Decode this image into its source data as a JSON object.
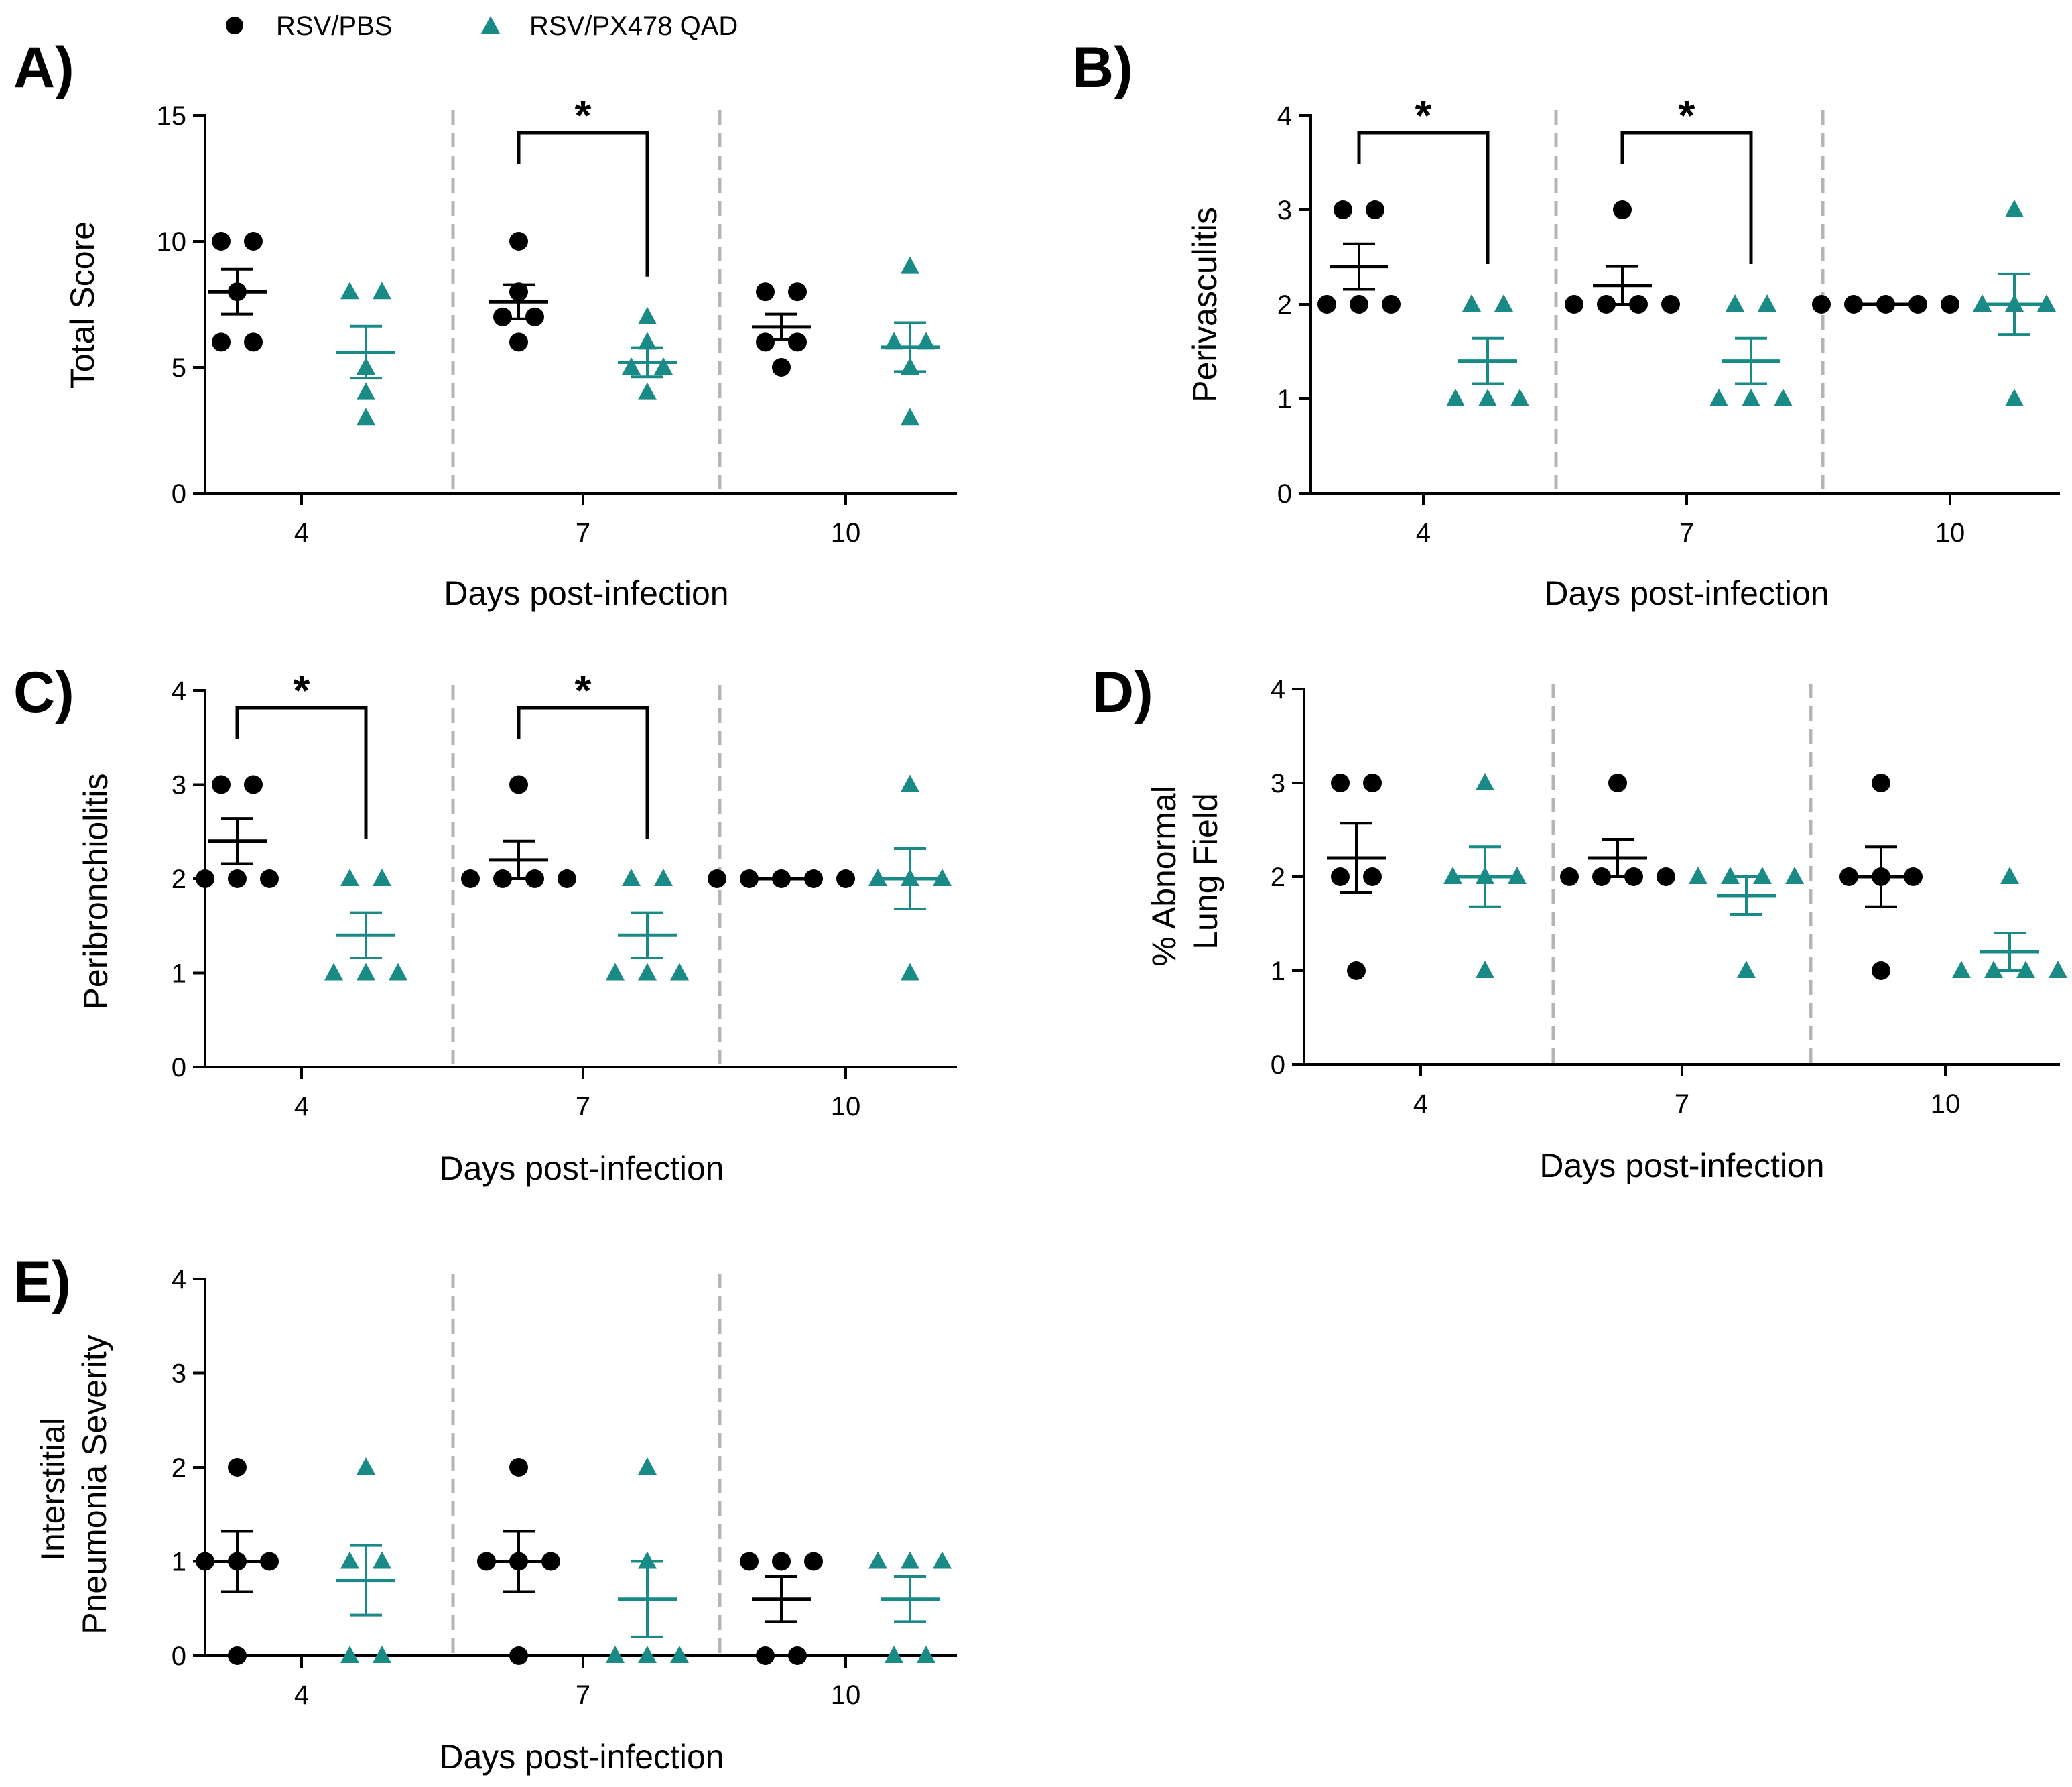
{
  "legend": {
    "items": [
      {
        "label": "RSV/PBS",
        "color": "#000000",
        "marker": "circle"
      },
      {
        "label": "RSV/PX478 QAD",
        "color": "#1a8a86",
        "marker": "triangle"
      }
    ]
  },
  "colors": {
    "pbs": "#000000",
    "px": "#1a8a86",
    "divider": "#b5b5b5"
  },
  "chart_data": [
    {
      "type": "scatter",
      "panel": "A)",
      "ylabel": [
        "Total Score"
      ],
      "xlabel": "Days post-infection",
      "categories": [
        "4",
        "7",
        "10"
      ],
      "ylim": [
        0,
        15
      ],
      "yticks": [
        0,
        5,
        10,
        15
      ],
      "series": [
        {
          "name": "RSV/PBS",
          "points": [
            [
              6,
              6,
              8,
              10,
              10
            ],
            [
              6,
              7,
              7,
              8,
              10
            ],
            [
              5,
              6,
              6,
              8,
              8
            ]
          ],
          "mean": [
            8,
            7.6,
            6.6
          ],
          "sem": [
            0.89,
            0.68,
            0.51
          ]
        },
        {
          "name": "RSV/PX478 QAD",
          "points": [
            [
              3,
              5,
              4,
              8,
              8
            ],
            [
              5,
              5,
              4,
              6,
              7
            ],
            [
              3,
              5,
              6,
              6,
              9
            ]
          ],
          "mean": [
            5.6,
            5.2,
            5.8
          ],
          "sem": [
            1.03,
            0.58,
            0.97
          ]
        }
      ],
      "significance": [
        {
          "category": "7",
          "label": "*"
        }
      ]
    },
    {
      "type": "scatter",
      "panel": "B)",
      "ylabel": [
        "Perivasculitis"
      ],
      "xlabel": "Days post-infection",
      "categories": [
        "4",
        "7",
        "10"
      ],
      "ylim": [
        0,
        4
      ],
      "yticks": [
        0,
        1,
        2,
        3,
        4
      ],
      "series": [
        {
          "name": "RSV/PBS",
          "points": [
            [
              2,
              2,
              2,
              3,
              3
            ],
            [
              2,
              2,
              2,
              2,
              3
            ],
            [
              2,
              2,
              2,
              2,
              2
            ]
          ],
          "mean": [
            2.4,
            2.2,
            2.0
          ],
          "sem": [
            0.24,
            0.2,
            0
          ]
        },
        {
          "name": "RSV/PX478 QAD",
          "points": [
            [
              1,
              1,
              1,
              2,
              2
            ],
            [
              1,
              1,
              1,
              2,
              2
            ],
            [
              1,
              2,
              2,
              2,
              3
            ]
          ],
          "mean": [
            1.4,
            1.4,
            2.0
          ],
          "sem": [
            0.24,
            0.24,
            0.32
          ]
        }
      ],
      "significance": [
        {
          "category": "4",
          "label": "*"
        },
        {
          "category": "7",
          "label": "*"
        }
      ]
    },
    {
      "type": "scatter",
      "panel": "C)",
      "ylabel": [
        "Peribronchiolitis"
      ],
      "xlabel": "Days post-infection",
      "categories": [
        "4",
        "7",
        "10"
      ],
      "ylim": [
        0,
        4
      ],
      "yticks": [
        0,
        1,
        2,
        3,
        4
      ],
      "series": [
        {
          "name": "RSV/PBS",
          "points": [
            [
              2,
              2,
              2,
              3,
              3
            ],
            [
              2,
              2,
              2,
              2,
              3
            ],
            [
              2,
              2,
              2,
              2,
              2
            ]
          ],
          "mean": [
            2.4,
            2.2,
            2.0
          ],
          "sem": [
            0.24,
            0.2,
            0
          ]
        },
        {
          "name": "RSV/PX478 QAD",
          "points": [
            [
              1,
              1,
              1,
              2,
              2
            ],
            [
              1,
              1,
              1,
              2,
              2
            ],
            [
              1,
              2,
              2,
              2,
              3
            ]
          ],
          "mean": [
            1.4,
            1.4,
            2.0
          ],
          "sem": [
            0.24,
            0.24,
            0.32
          ]
        }
      ],
      "significance": [
        {
          "category": "4",
          "label": "*"
        },
        {
          "category": "7",
          "label": "*"
        }
      ]
    },
    {
      "type": "scatter",
      "panel": "D)",
      "ylabel": [
        "% Abnormal",
        "Lung Field"
      ],
      "xlabel": "Days post-infection",
      "categories": [
        "4",
        "7",
        "10"
      ],
      "ylim": [
        0,
        4
      ],
      "yticks": [
        0,
        1,
        2,
        3,
        4
      ],
      "series": [
        {
          "name": "RSV/PBS",
          "points": [
            [
              1,
              2,
              2,
              3,
              3
            ],
            [
              2,
              2,
              2,
              2,
              3
            ],
            [
              1,
              2,
              2,
              2,
              3
            ]
          ],
          "mean": [
            2.2,
            2.2,
            2.0
          ],
          "sem": [
            0.37,
            0.2,
            0.32
          ]
        },
        {
          "name": "RSV/PX478 QAD",
          "points": [
            [
              1,
              2,
              2,
              2,
              3
            ],
            [
              1,
              2,
              2,
              2,
              2
            ],
            [
              1,
              1,
              1,
              1,
              2
            ]
          ],
          "mean": [
            2.0,
            1.8,
            1.2
          ],
          "sem": [
            0.32,
            0.2,
            0.2
          ]
        }
      ],
      "significance": []
    },
    {
      "type": "scatter",
      "panel": "E)",
      "ylabel": [
        "Interstitial",
        "Pneumonia Severity"
      ],
      "xlabel": "Days post-infection",
      "categories": [
        "4",
        "7",
        "10"
      ],
      "ylim": [
        0,
        4
      ],
      "yticks": [
        0,
        1,
        2,
        3,
        4
      ],
      "series": [
        {
          "name": "RSV/PBS",
          "points": [
            [
              0,
              1,
              1,
              1,
              2
            ],
            [
              0,
              1,
              1,
              1,
              2
            ],
            [
              0,
              0,
              1,
              1,
              1
            ]
          ],
          "mean": [
            1.0,
            1.0,
            0.6
          ],
          "sem": [
            0.32,
            0.32,
            0.24
          ]
        },
        {
          "name": "RSV/PX478 QAD",
          "points": [
            [
              0,
              0,
              1,
              1,
              2
            ],
            [
              0,
              0,
              0,
              1,
              2
            ],
            [
              0,
              0,
              1,
              1,
              1
            ]
          ],
          "mean": [
            0.8,
            0.6,
            0.6
          ],
          "sem": [
            0.37,
            0.4,
            0.24
          ]
        }
      ],
      "significance": []
    }
  ]
}
